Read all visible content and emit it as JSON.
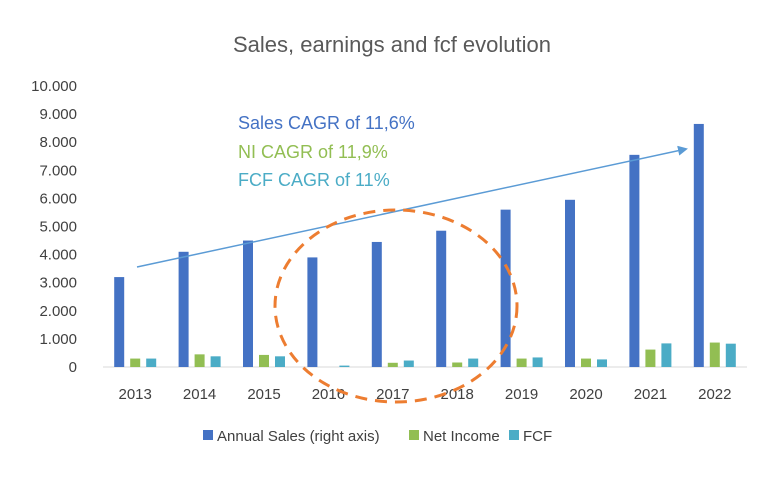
{
  "chart_data": {
    "type": "bar",
    "title": "Sales, earnings and fcf evolution",
    "categories": [
      "2013",
      "2014",
      "2015",
      "2016",
      "2017",
      "2018",
      "2019",
      "2020",
      "2021",
      "2022"
    ],
    "series": [
      {
        "name": "Annual Sales (right axis)",
        "color": "#4472C4",
        "values": [
          3200,
          4100,
          4500,
          3900,
          4450,
          4850,
          5600,
          5950,
          7550,
          8650
        ]
      },
      {
        "name": "Net Income",
        "color": "#92BE53",
        "values": [
          300,
          450,
          430,
          0,
          150,
          160,
          300,
          300,
          620,
          870
        ]
      },
      {
        "name": "FCF",
        "color": "#4BACC6",
        "values": [
          300,
          380,
          380,
          50,
          230,
          300,
          340,
          270,
          840,
          830
        ]
      }
    ],
    "ylim": [
      0,
      10000
    ],
    "yticks": [
      "0",
      "1.000",
      "2.000",
      "3.000",
      "4.000",
      "5.000",
      "6.000",
      "7.000",
      "8.000",
      "9.000",
      "10.000"
    ],
    "annotations": [
      {
        "text": "Sales CAGR of 11,6%",
        "color": "#4472C4"
      },
      {
        "text": "NI CAGR of 11,9%",
        "color": "#92BE53"
      },
      {
        "text": "FCF CAGR of 11%",
        "color": "#4BACC6"
      }
    ],
    "trend_arrow_color": "#5B9BD5",
    "highlight_ellipse_color": "#ED7D31",
    "legend_position": "bottom",
    "grid": false
  }
}
